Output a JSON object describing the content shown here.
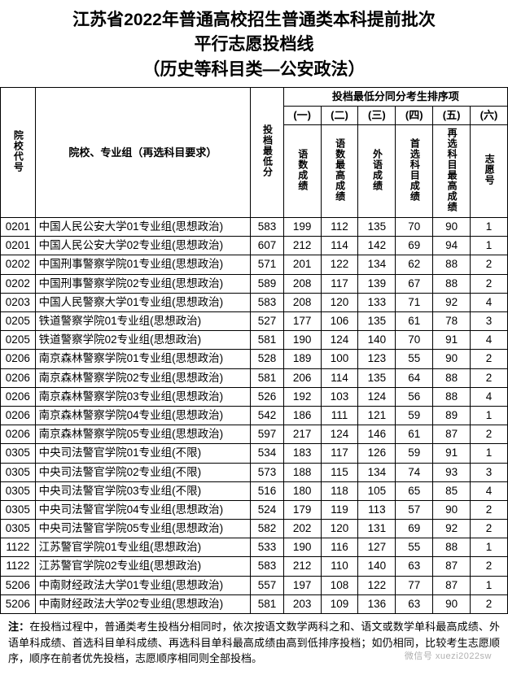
{
  "title": {
    "line1": "江苏省2022年普通高校招生普通类本科提前批次",
    "line2": "平行志愿投档线",
    "line3": "（历史等科目类—公安政法）"
  },
  "headers": {
    "code": "院校代号",
    "name": "院校、专业组（再选科目要求）",
    "score": "投档最低分",
    "rank_group": "投档最低分同分考生排序项",
    "cols_num": {
      "c1": "(一)",
      "c2": "(二)",
      "c3": "(三)",
      "c4": "(四)",
      "c5": "(五)",
      "c6": "(六)"
    },
    "cols_label": {
      "c1": "语数成绩",
      "c2": "语数最高成绩",
      "c3": "外语成绩",
      "c4": "首选科目成绩",
      "c5": "再选科目最高成绩",
      "c6": "志愿号"
    }
  },
  "rows": [
    {
      "code": "0201",
      "name": "中国人民公安大学01专业组(思想政治)",
      "score": "583",
      "c1": "199",
      "c2": "112",
      "c3": "135",
      "c4": "70",
      "c5": "90",
      "c6": "1"
    },
    {
      "code": "0201",
      "name": "中国人民公安大学02专业组(思想政治)",
      "score": "607",
      "c1": "212",
      "c2": "114",
      "c3": "142",
      "c4": "69",
      "c5": "94",
      "c6": "1"
    },
    {
      "code": "0202",
      "name": "中国刑事警察学院01专业组(思想政治)",
      "score": "571",
      "c1": "201",
      "c2": "122",
      "c3": "134",
      "c4": "62",
      "c5": "88",
      "c6": "2"
    },
    {
      "code": "0202",
      "name": "中国刑事警察学院02专业组(思想政治)",
      "score": "589",
      "c1": "208",
      "c2": "117",
      "c3": "139",
      "c4": "67",
      "c5": "88",
      "c6": "2"
    },
    {
      "code": "0203",
      "name": "中国人民警察大学01专业组(思想政治)",
      "score": "583",
      "c1": "208",
      "c2": "120",
      "c3": "133",
      "c4": "71",
      "c5": "92",
      "c6": "4"
    },
    {
      "code": "0205",
      "name": "铁道警察学院01专业组(思想政治)",
      "score": "527",
      "c1": "177",
      "c2": "106",
      "c3": "135",
      "c4": "61",
      "c5": "78",
      "c6": "3"
    },
    {
      "code": "0205",
      "name": "铁道警察学院02专业组(思想政治)",
      "score": "581",
      "c1": "190",
      "c2": "124",
      "c3": "140",
      "c4": "70",
      "c5": "91",
      "c6": "4"
    },
    {
      "code": "0206",
      "name": "南京森林警察学院01专业组(思想政治)",
      "score": "528",
      "c1": "189",
      "c2": "100",
      "c3": "123",
      "c4": "55",
      "c5": "90",
      "c6": "2"
    },
    {
      "code": "0206",
      "name": "南京森林警察学院02专业组(思想政治)",
      "score": "581",
      "c1": "206",
      "c2": "114",
      "c3": "135",
      "c4": "64",
      "c5": "88",
      "c6": "2"
    },
    {
      "code": "0206",
      "name": "南京森林警察学院03专业组(思想政治)",
      "score": "526",
      "c1": "192",
      "c2": "103",
      "c3": "124",
      "c4": "56",
      "c5": "88",
      "c6": "4"
    },
    {
      "code": "0206",
      "name": "南京森林警察学院04专业组(思想政治)",
      "score": "542",
      "c1": "186",
      "c2": "111",
      "c3": "121",
      "c4": "59",
      "c5": "89",
      "c6": "1"
    },
    {
      "code": "0206",
      "name": "南京森林警察学院05专业组(思想政治)",
      "score": "597",
      "c1": "217",
      "c2": "124",
      "c3": "146",
      "c4": "61",
      "c5": "87",
      "c6": "2"
    },
    {
      "code": "0305",
      "name": "中央司法警官学院01专业组(不限)",
      "score": "534",
      "c1": "183",
      "c2": "117",
      "c3": "126",
      "c4": "59",
      "c5": "91",
      "c6": "1"
    },
    {
      "code": "0305",
      "name": "中央司法警官学院02专业组(不限)",
      "score": "573",
      "c1": "188",
      "c2": "115",
      "c3": "134",
      "c4": "74",
      "c5": "93",
      "c6": "3"
    },
    {
      "code": "0305",
      "name": "中央司法警官学院03专业组(不限)",
      "score": "516",
      "c1": "180",
      "c2": "118",
      "c3": "105",
      "c4": "65",
      "c5": "85",
      "c6": "4"
    },
    {
      "code": "0305",
      "name": "中央司法警官学院04专业组(思想政治)",
      "score": "524",
      "c1": "179",
      "c2": "119",
      "c3": "113",
      "c4": "57",
      "c5": "90",
      "c6": "2"
    },
    {
      "code": "0305",
      "name": "中央司法警官学院05专业组(思想政治)",
      "score": "582",
      "c1": "202",
      "c2": "120",
      "c3": "131",
      "c4": "69",
      "c5": "92",
      "c6": "2"
    },
    {
      "code": "1122",
      "name": "江苏警官学院01专业组(思想政治)",
      "score": "533",
      "c1": "190",
      "c2": "116",
      "c3": "127",
      "c4": "55",
      "c5": "88",
      "c6": "1"
    },
    {
      "code": "1122",
      "name": "江苏警官学院02专业组(思想政治)",
      "score": "583",
      "c1": "212",
      "c2": "110",
      "c3": "140",
      "c4": "63",
      "c5": "87",
      "c6": "2"
    },
    {
      "code": "5206",
      "name": "中南财经政法大学01专业组(思想政治)",
      "score": "557",
      "c1": "197",
      "c2": "108",
      "c3": "122",
      "c4": "77",
      "c5": "87",
      "c6": "1"
    },
    {
      "code": "5206",
      "name": "中南财经政法大学02专业组(思想政治)",
      "score": "581",
      "c1": "203",
      "c2": "109",
      "c3": "136",
      "c4": "63",
      "c5": "90",
      "c6": "2"
    }
  ],
  "note": {
    "label": "注：",
    "text": "在投档过程中，普通类考生投档分相同时，依次按语文数学两科之和、语文或数学单科最高成绩、外语单科成绩、首选科目单科成绩、再选科目单科最高成绩由高到低排序投档；如仍相同，比较考生志愿顺序，顺序在前者优先投档，志愿顺序相同则全部投档。"
  },
  "watermark": "微信号 xuezi2022sw",
  "style": {
    "title_color": "#000000",
    "border_color": "#000000",
    "background": "#ffffff",
    "title_fontsize": 21,
    "cell_fontsize": 13
  }
}
